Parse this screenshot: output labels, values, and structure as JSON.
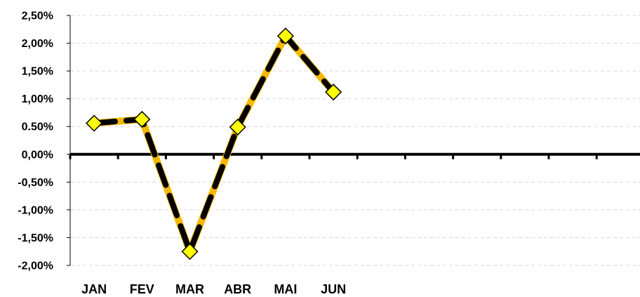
{
  "chart_data": {
    "type": "line",
    "title": "",
    "xlabel": "",
    "ylabel": "",
    "categories": [
      "JAN",
      "FEV",
      "MAR",
      "ABR",
      "MAI",
      "JUN"
    ],
    "total_category_slots": 12,
    "series": [
      {
        "values": [
          0.56,
          0.63,
          -1.75,
          0.49,
          2.13,
          1.12
        ]
      }
    ],
    "ylim": [
      -2.0,
      2.5
    ],
    "yticks": [
      2.5,
      2.0,
      1.5,
      1.0,
      0.5,
      0.0,
      -0.5,
      -1.0,
      -1.5,
      -2.0
    ],
    "ytick_labels": [
      "2,50%",
      "2,00%",
      "1,50%",
      "1,00%",
      "0.50%",
      "0,00%",
      "-0,50%",
      "-1,00%",
      "-1,50%",
      "-2,00%"
    ],
    "grid": true,
    "legend": "none",
    "colors": {
      "line_outer": "#F5B800",
      "line_inner_dash": "#000000",
      "marker_fill": "#FFFF00",
      "marker_stroke": "#000000",
      "gridline": "#D9D9D9",
      "axis": "#000000",
      "zero_axis": "#000000"
    },
    "marker": "diamond-icon"
  }
}
